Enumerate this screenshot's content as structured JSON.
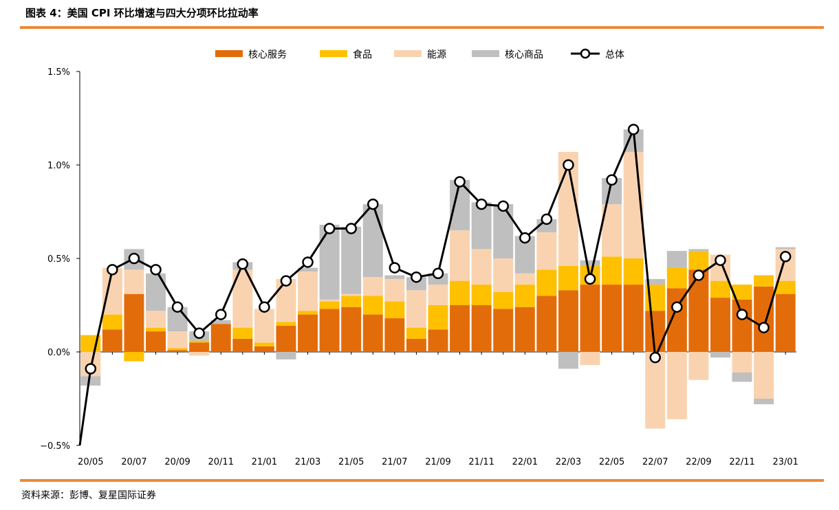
{
  "header": {
    "title": "图表 4：美国 CPI 环比增速与四大分项环比拉动率"
  },
  "footer": {
    "source": "资料来源：彭博、复星国际证券"
  },
  "colors": {
    "core_services": "#E36C0A",
    "food": "#FFC000",
    "energy": "#F9D3B0",
    "core_goods": "#BFBFBF",
    "total": "#000000",
    "accent_rule": "#ED8936"
  },
  "chart_data": {
    "type": "bar",
    "stacked": true,
    "title": "",
    "xlabel": "",
    "ylabel": "",
    "ylim": [
      -0.5,
      1.5
    ],
    "yticks": [
      -0.5,
      0.0,
      0.5,
      1.0,
      1.5
    ],
    "ytick_labels": [
      "−0.5%",
      "0.0%",
      "0.5%",
      "1.0%",
      "1.5%"
    ],
    "legend_position": "top-center",
    "x_tick_labels": [
      "20/05",
      "20/07",
      "20/09",
      "20/11",
      "21/01",
      "21/03",
      "21/05",
      "21/07",
      "21/09",
      "21/11",
      "22/01",
      "22/03",
      "22/05",
      "22/07",
      "22/09",
      "22/11",
      "23/01"
    ],
    "categories": [
      "20/05",
      "20/06",
      "20/07",
      "20/08",
      "20/09",
      "20/10",
      "20/11",
      "20/12",
      "21/01",
      "21/02",
      "21/03",
      "21/04",
      "21/05",
      "21/06",
      "21/07",
      "21/08",
      "21/09",
      "21/10",
      "21/11",
      "21/12",
      "22/01",
      "22/02",
      "22/03",
      "22/04",
      "22/05",
      "22/06",
      "22/07",
      "22/08",
      "22/09",
      "22/10",
      "22/11",
      "22/12",
      "23/01"
    ],
    "series": [
      {
        "name": "核心服务",
        "kind": "bar",
        "color": "#E36C0A",
        "values": [
          0.0,
          0.12,
          0.31,
          0.11,
          0.01,
          0.05,
          0.15,
          0.07,
          0.03,
          0.14,
          0.2,
          0.23,
          0.24,
          0.2,
          0.18,
          0.07,
          0.12,
          0.25,
          0.25,
          0.23,
          0.24,
          0.3,
          0.33,
          0.36,
          0.36,
          0.36,
          0.22,
          0.34,
          0.44,
          0.29,
          0.28,
          0.35,
          0.31
        ]
      },
      {
        "name": "食品",
        "kind": "bar",
        "color": "#FFC000",
        "values": [
          0.09,
          0.08,
          -0.05,
          0.02,
          0.01,
          0.01,
          0.0,
          0.06,
          0.02,
          0.02,
          0.02,
          0.04,
          0.06,
          0.1,
          0.09,
          0.06,
          0.13,
          0.13,
          0.11,
          0.09,
          0.12,
          0.14,
          0.13,
          0.1,
          0.15,
          0.14,
          0.14,
          0.11,
          0.1,
          0.09,
          0.08,
          0.06,
          0.07
        ]
      },
      {
        "name": "能源",
        "kind": "bar",
        "color": "#F9D3B0",
        "values": [
          -0.13,
          0.25,
          0.13,
          0.09,
          0.09,
          -0.02,
          0.0,
          0.31,
          0.18,
          0.23,
          0.21,
          0.01,
          0.01,
          0.1,
          0.12,
          0.2,
          0.11,
          0.27,
          0.19,
          0.18,
          0.06,
          0.2,
          0.61,
          -0.07,
          0.28,
          0.57,
          -0.41,
          -0.36,
          -0.15,
          0.14,
          -0.11,
          -0.25,
          0.17
        ]
      },
      {
        "name": "核心商品",
        "kind": "bar",
        "color": "#BFBFBF",
        "values": [
          -0.05,
          0.0,
          0.11,
          0.2,
          0.13,
          0.05,
          0.02,
          0.04,
          0.0,
          -0.04,
          0.02,
          0.4,
          0.36,
          0.39,
          0.02,
          0.07,
          0.06,
          0.27,
          0.25,
          0.29,
          0.2,
          0.07,
          -0.09,
          0.03,
          0.14,
          0.12,
          0.03,
          0.09,
          0.01,
          -0.03,
          -0.05,
          -0.03,
          0.01
        ]
      },
      {
        "name": "总体",
        "kind": "line",
        "color": "#000000",
        "values": [
          -0.09,
          0.44,
          0.5,
          0.44,
          0.24,
          0.1,
          0.2,
          0.47,
          0.24,
          0.38,
          0.48,
          0.66,
          0.66,
          0.79,
          0.45,
          0.4,
          0.42,
          0.91,
          0.79,
          0.78,
          0.61,
          0.71,
          1.0,
          0.39,
          0.92,
          1.19,
          -0.03,
          0.24,
          0.41,
          0.49,
          0.2,
          0.13,
          0.51
        ]
      }
    ]
  }
}
